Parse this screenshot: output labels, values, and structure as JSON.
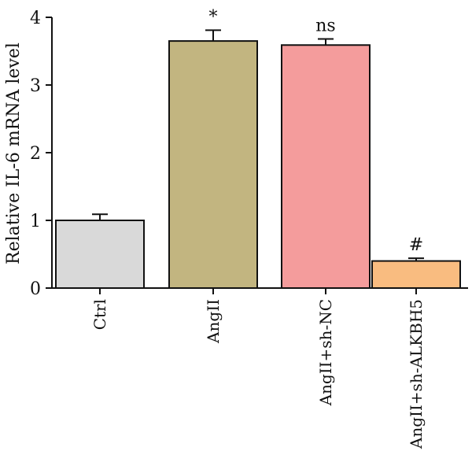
{
  "chart_data": {
    "type": "bar",
    "title": "",
    "xlabel": "",
    "ylabel": "Relative IL-6 mRNA level",
    "ylim": [
      0,
      4
    ],
    "yticks": [
      0,
      1,
      2,
      3,
      4
    ],
    "grid": false,
    "categories": [
      "Ctrl",
      "AngII",
      "AngII+sh-NC",
      "AngII+sh-ALKBH5"
    ],
    "values": [
      1.0,
      3.65,
      3.59,
      0.4
    ],
    "errors": [
      0.09,
      0.16,
      0.09,
      0.04
    ],
    "annotations": [
      "",
      "*",
      "ns",
      "#"
    ],
    "colors": [
      "#d9d9d9",
      "#c2b580",
      "#f49c9c",
      "#f9bc80"
    ]
  }
}
